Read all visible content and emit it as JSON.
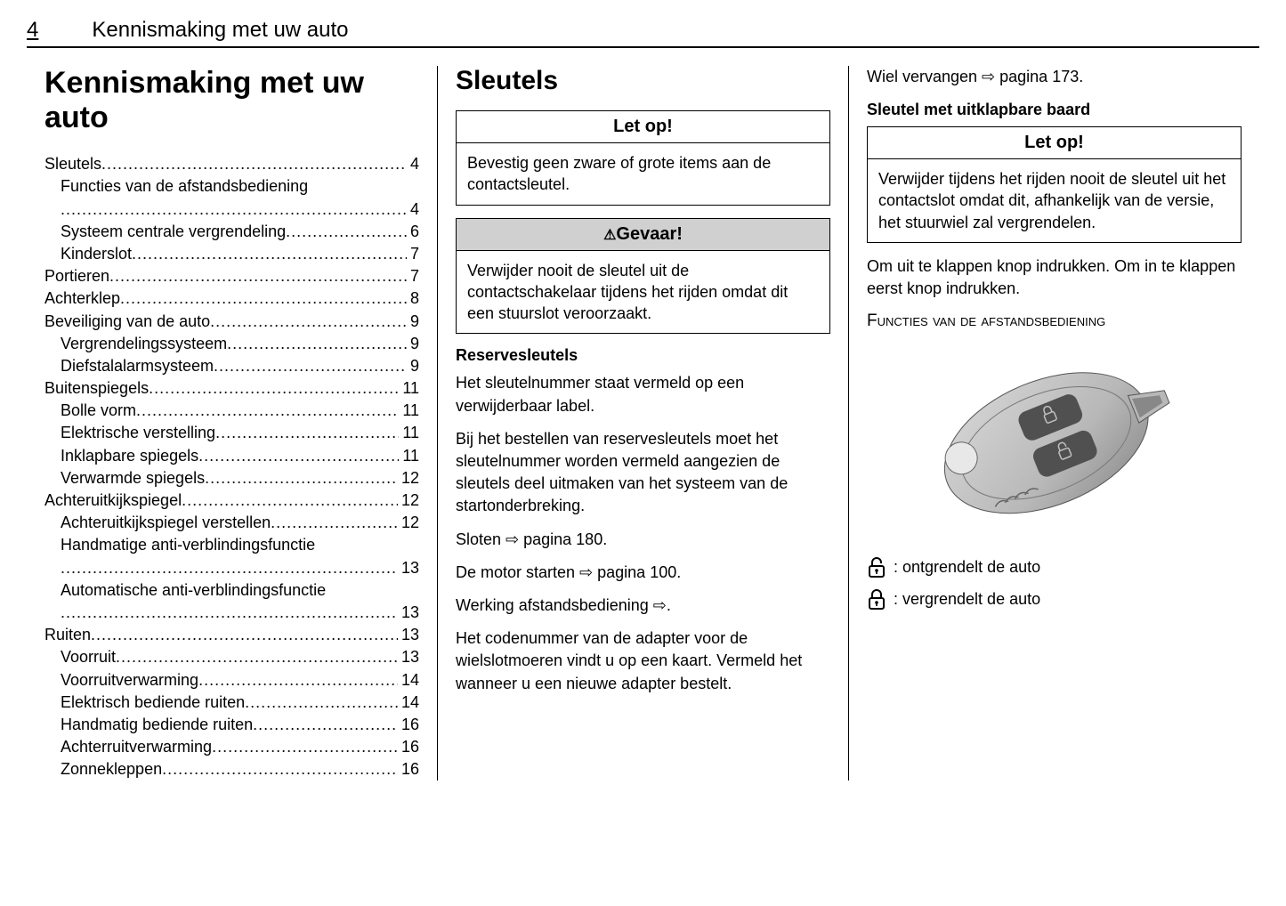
{
  "header": {
    "page_number": "4",
    "title": "Kennismaking met uw auto"
  },
  "col1": {
    "title": "Kennismaking met uw auto",
    "toc": [
      {
        "label": "Sleutels",
        "page": "4",
        "indent": false
      },
      {
        "label": "Functies van de afstandsbediening",
        "page": "4",
        "indent": true,
        "wrap": true
      },
      {
        "label": "Systeem centrale vergrendeling",
        "page": "6",
        "indent": true
      },
      {
        "label": "Kinderslot",
        "page": "7",
        "indent": true
      },
      {
        "label": "Portieren",
        "page": "7",
        "indent": false
      },
      {
        "label": "Achterklep",
        "page": "8",
        "indent": false
      },
      {
        "label": "Beveiliging van de auto",
        "page": "9",
        "indent": false
      },
      {
        "label": "Vergrendelingssysteem",
        "page": "9",
        "indent": true
      },
      {
        "label": "Diefstalalarmsysteem",
        "page": "9",
        "indent": true
      },
      {
        "label": "Buitenspiegels",
        "page": "11",
        "indent": false
      },
      {
        "label": "Bolle vorm",
        "page": "11",
        "indent": true
      },
      {
        "label": "Elektrische verstelling",
        "page": "11",
        "indent": true
      },
      {
        "label": "Inklapbare spiegels",
        "page": "11",
        "indent": true
      },
      {
        "label": "Verwarmde spiegels",
        "page": "12",
        "indent": true
      },
      {
        "label": "Achteruitkijkspiegel",
        "page": "12",
        "indent": false
      },
      {
        "label": "Achteruitkijkspiegel verstellen",
        "page": "12",
        "indent": true
      },
      {
        "label": "Handmatige anti-verblindingsfunctie",
        "page": "13",
        "indent": true,
        "wrap": true
      },
      {
        "label": "Automatische anti-verblindingsfunctie",
        "page": "13",
        "indent": true,
        "wrap": true
      },
      {
        "label": "Ruiten",
        "page": "13",
        "indent": false
      },
      {
        "label": "Voorruit",
        "page": "13",
        "indent": true
      },
      {
        "label": "Voorruitverwarming",
        "page": "14",
        "indent": true
      },
      {
        "label": "Elektrisch bediende ruiten",
        "page": "14",
        "indent": true
      },
      {
        "label": "Handmatig bediende ruiten",
        "page": "16",
        "indent": true
      },
      {
        "label": "Achterruitverwarming",
        "page": "16",
        "indent": true
      },
      {
        "label": "Zonnekleppen",
        "page": "16",
        "indent": true
      }
    ]
  },
  "col2": {
    "title": "Sleutels",
    "box1": {
      "header": "Let op!",
      "body": "Bevestig geen zware of grote items aan de contactsleutel."
    },
    "box2": {
      "header": "Gevaar!",
      "body": "Verwijder nooit de sleutel uit de contactschakelaar tijdens het rijden omdat dit een stuurslot veroorzaakt."
    },
    "sub1": "Reservesleutels",
    "p1": "Het sleutelnummer staat vermeld op een verwijderbaar label.",
    "p2": "Bij het bestellen van reservesleutels moet het sleutelnummer worden vermeld aangezien de sleutels deel uitmaken van het systeem van de startonderbreking.",
    "p3": "Sloten ⇨ pagina 180.",
    "p4": "De motor starten ⇨ pagina 100.",
    "p5": "Werking afstandsbediening ⇨.",
    "p6": "Het codenummer van de adapter voor de wielslotmoeren vindt u op een kaart. Vermeld het wanneer u een nieuwe adapter bestelt."
  },
  "col3": {
    "p1": "Wiel vervangen ⇨ pagina 173.",
    "sub1": "Sleutel met uitklapbare baard",
    "box1": {
      "header": "Let op!",
      "body": "Verwijder tijdens het rijden nooit de sleutel uit het contactslot omdat dit, afhankelijk van de versie, het stuurwiel zal vergrendelen."
    },
    "p2": "Om uit te klappen knop indrukken. Om in te klappen eerst knop indrukken.",
    "heading": "Functies van de afstandsbediening",
    "icon1_text": ": ontgrendelt de auto",
    "icon2_text": ": vergrendelt de auto"
  },
  "fob": {
    "body_color": "#b8b8b8",
    "body_highlight": "#d8d8d8",
    "body_shadow": "#888888",
    "button_color": "#505050",
    "tip_color": "#e8e8e8",
    "icon_color": "#c0c0c0"
  }
}
